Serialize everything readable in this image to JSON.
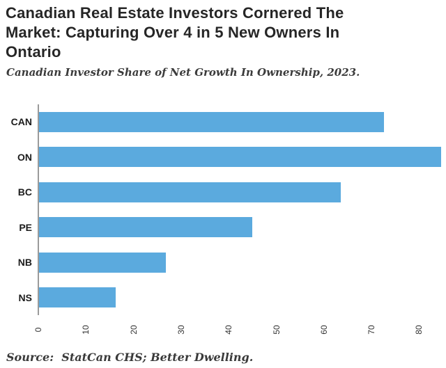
{
  "title_lines": [
    "Canadian Real Estate Investors Cornered The",
    "Market: Capturing Over 4 in 5 New Owners In",
    "Ontario"
  ],
  "subtitle": "Canadian Investor Share of Net Growth In Ownership, 2023.",
  "source": "Source:  StatCan CHS; Better Dwelling.",
  "colors": {
    "bar": "#5baade",
    "spine": "#9a9a9a",
    "title_text": "#262626",
    "tick_text": "#333333"
  },
  "chart_data": {
    "type": "bar",
    "orientation": "horizontal",
    "title": "Canadian Real Estate Investors Cornered The Market: Capturing Over 4 in 5 New Owners In Ontario",
    "subtitle": "Canadian Investor Share of Net Growth In Ownership, 2023.",
    "categories": [
      "CAN",
      "ON",
      "BC",
      "PE",
      "NB",
      "NS"
    ],
    "values": [
      72.5,
      84.5,
      63.4,
      44.8,
      26.6,
      16.1
    ],
    "xlabel": "",
    "ylabel": "",
    "xlim": [
      0,
      85
    ],
    "xticks": [
      0,
      10,
      20,
      30,
      40,
      50,
      60,
      70,
      80
    ],
    "grid": false,
    "legend": false,
    "source": "Source:  StatCan CHS; Better Dwelling."
  }
}
